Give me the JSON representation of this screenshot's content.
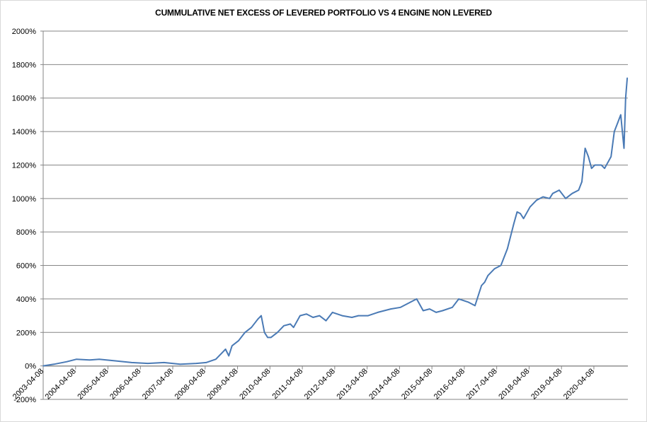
{
  "chart_data": {
    "type": "line",
    "title": "CUMMULATIVE NET EXCESS OF LEVERED PORTFOLIO VS 4 ENGINE NON LEVERED",
    "xlabel": "",
    "ylabel": "",
    "ylim": [
      -200,
      2000
    ],
    "y_ticks": [
      -200,
      0,
      200,
      400,
      600,
      800,
      1000,
      1200,
      1400,
      1600,
      1800,
      2000
    ],
    "y_tick_labels": [
      "-200%",
      "0%",
      "200%",
      "400%",
      "600%",
      "800%",
      "1000%",
      "1200%",
      "1400%",
      "1600%",
      "1800%",
      "2000%"
    ],
    "x_tick_labels": [
      "2003-04-08",
      "2004-04-08",
      "2005-04-08",
      "2006-04-08",
      "2007-04-08",
      "2008-04-08",
      "2009-04-08",
      "2010-04-08",
      "2011-04-08",
      "2012-04-08",
      "2013-04-08",
      "2014-04-08",
      "2015-04-08",
      "2016-04-08",
      "2017-04-08",
      "2018-04-08",
      "2019-04-08",
      "2020-04-08"
    ],
    "grid": true,
    "line_color": "#4a7ab5",
    "series": [
      {
        "x": [
          2003.27,
          2003.6,
          2004.0,
          2004.3,
          2004.7,
          2005.0,
          2005.5,
          2006.0,
          2006.5,
          2007.0,
          2007.5,
          2008.0,
          2008.3,
          2008.6,
          2008.8,
          2008.9,
          2009.0,
          2009.1,
          2009.3,
          2009.5,
          2009.7,
          2009.9,
          2010.0,
          2010.1,
          2010.2,
          2010.3,
          2010.5,
          2010.7,
          2010.9,
          2011.0,
          2011.2,
          2011.4,
          2011.6,
          2011.8,
          2012.0,
          2012.2,
          2012.5,
          2012.8,
          2013.0,
          2013.3,
          2013.6,
          2014.0,
          2014.3,
          2014.6,
          2014.8,
          2015.0,
          2015.2,
          2015.4,
          2015.6,
          2015.9,
          2016.1,
          2016.4,
          2016.6,
          2016.8,
          2016.9,
          2017.0,
          2017.2,
          2017.4,
          2017.6,
          2017.8,
          2017.9,
          2018.0,
          2018.1,
          2018.3,
          2018.5,
          2018.7,
          2018.9,
          2019.0,
          2019.2,
          2019.4,
          2019.6,
          2019.8,
          2019.9,
          2020.0,
          2020.1,
          2020.2,
          2020.3,
          2020.5,
          2020.6,
          2020.8,
          2020.9,
          2021.0,
          2021.1,
          2021.2,
          2021.25,
          2021.3
        ],
        "values": [
          0,
          10,
          25,
          40,
          35,
          40,
          30,
          20,
          15,
          20,
          10,
          15,
          20,
          40,
          80,
          100,
          60,
          120,
          150,
          200,
          230,
          280,
          300,
          200,
          170,
          170,
          200,
          240,
          250,
          230,
          300,
          310,
          290,
          300,
          270,
          320,
          300,
          290,
          300,
          300,
          320,
          340,
          350,
          380,
          400,
          330,
          340,
          320,
          330,
          350,
          400,
          380,
          360,
          480,
          500,
          540,
          580,
          600,
          700,
          850,
          920,
          910,
          880,
          950,
          990,
          1010,
          1000,
          1030,
          1050,
          1000,
          1030,
          1050,
          1100,
          1300,
          1250,
          1180,
          1200,
          1200,
          1180,
          1250,
          1400,
          1450,
          1500,
          1300,
          1600,
          1720
        ]
      }
    ]
  }
}
